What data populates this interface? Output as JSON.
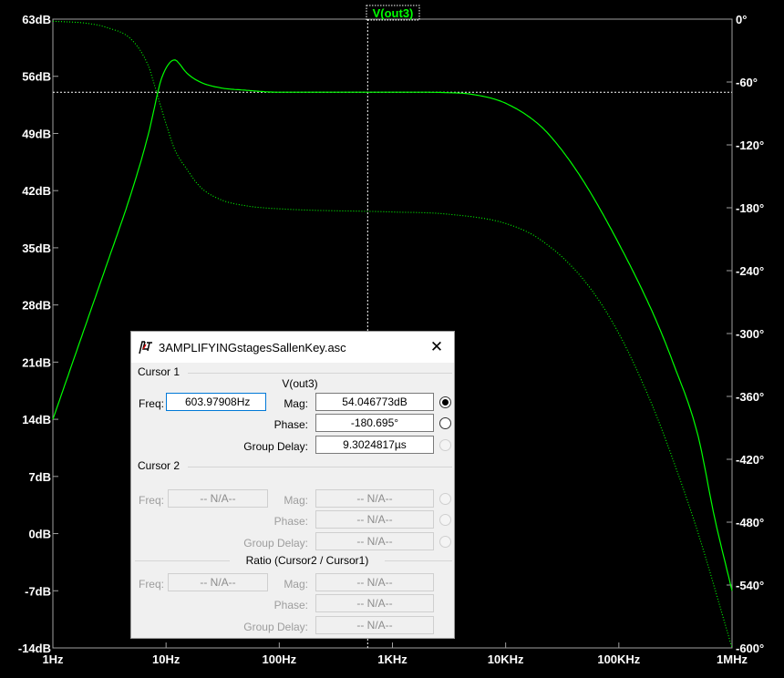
{
  "chart_data": {
    "type": "line",
    "title": "V(out3)",
    "xscale": "log",
    "xlim": [
      1,
      1000000
    ],
    "x_ticks": [
      {
        "value": 1,
        "label": "1Hz"
      },
      {
        "value": 10,
        "label": "10Hz"
      },
      {
        "value": 100,
        "label": "100Hz"
      },
      {
        "value": 1000,
        "label": "1KHz"
      },
      {
        "value": 10000,
        "label": "10KHz"
      },
      {
        "value": 100000,
        "label": "100KHz"
      },
      {
        "value": 1000000,
        "label": "1MHz"
      }
    ],
    "ylim_left": [
      -14,
      63
    ],
    "left_ticks": [
      {
        "value": 63,
        "label": "63dB"
      },
      {
        "value": 56,
        "label": "56dB"
      },
      {
        "value": 49,
        "label": "49dB"
      },
      {
        "value": 42,
        "label": "42dB"
      },
      {
        "value": 35,
        "label": "35dB"
      },
      {
        "value": 28,
        "label": "28dB"
      },
      {
        "value": 21,
        "label": "21dB"
      },
      {
        "value": 14,
        "label": "14dB"
      },
      {
        "value": 7,
        "label": "7dB"
      },
      {
        "value": 0,
        "label": "0dB"
      },
      {
        "value": -7,
        "label": "-7dB"
      },
      {
        "value": -14,
        "label": "-14dB"
      }
    ],
    "ylim_right": [
      -600,
      0
    ],
    "right_ticks": [
      {
        "value": 0,
        "label": "0°"
      },
      {
        "value": -60,
        "label": "-60°"
      },
      {
        "value": -120,
        "label": "-120°"
      },
      {
        "value": -180,
        "label": "-180°"
      },
      {
        "value": -240,
        "label": "-240°"
      },
      {
        "value": -300,
        "label": "-300°"
      },
      {
        "value": -360,
        "label": "-360°"
      },
      {
        "value": -420,
        "label": "-420°"
      },
      {
        "value": -480,
        "label": "-480°"
      },
      {
        "value": -540,
        "label": "-540°"
      },
      {
        "value": -600,
        "label": "-600°"
      }
    ],
    "series": [
      {
        "name": "V(out3)",
        "kind": "magnitude",
        "axis": "left",
        "color": "#00ff00",
        "style": "solid",
        "x": [
          1,
          2,
          3,
          5,
          7,
          9,
          10,
          11,
          12,
          13,
          15,
          20,
          30,
          50,
          100,
          200,
          1000,
          3000,
          5000,
          10000,
          20000,
          30000,
          50000,
          100000,
          200000,
          300000,
          500000,
          700000,
          1000000
        ],
        "y": [
          14,
          26,
          33,
          42,
          49,
          55.5,
          57,
          57.8,
          58,
          57.6,
          56.5,
          55.3,
          54.6,
          54.3,
          54.05,
          54.05,
          54.05,
          54.0,
          53.8,
          52.7,
          50.0,
          47.3,
          42.9,
          35.5,
          27.0,
          21.0,
          12.0,
          2.0,
          -7.0
        ]
      },
      {
        "name": "V(out3)",
        "kind": "phase",
        "axis": "right",
        "color": "#00ff00",
        "style": "dotted",
        "x": [
          1,
          2,
          3,
          5,
          7,
          8,
          10,
          12,
          15,
          20,
          30,
          50,
          100,
          1000,
          3000,
          10000,
          20000,
          50000,
          100000,
          200000,
          300000,
          500000,
          1000000
        ],
        "y": [
          -2,
          -4,
          -8,
          -20,
          -45,
          -65,
          -100,
          -125,
          -142,
          -160,
          -172,
          -178,
          -181,
          -184,
          -186,
          -195,
          -210,
          -250,
          -300,
          -370,
          -420,
          -490,
          -600
        ]
      }
    ],
    "cursor": {
      "x": 603.97908,
      "y_db": 54.046773
    }
  },
  "dialog": {
    "title": "3AMPLIFYINGstagesSallenKey.asc",
    "close_glyph": "✕",
    "cursor1": {
      "label": "Cursor 1",
      "signal": "V(out3)",
      "freq_label": "Freq:",
      "freq_value": "603.97908Hz",
      "mag_label": "Mag:",
      "mag_value": "54.046773dB",
      "phase_label": "Phase:",
      "phase_value": "-180.695°",
      "gd_label": "Group Delay:",
      "gd_value": "9.3024817µs"
    },
    "cursor2": {
      "label": "Cursor 2",
      "freq_label": "Freq:",
      "freq_value": "-- N/A--",
      "mag_label": "Mag:",
      "mag_value": "-- N/A--",
      "phase_label": "Phase:",
      "phase_value": "-- N/A--",
      "gd_label": "Group Delay:",
      "gd_value": "-- N/A--"
    },
    "ratio": {
      "label": "Ratio (Cursor2 / Cursor1)",
      "freq_label": "Freq:",
      "freq_value": "-- N/A--",
      "mag_label": "Mag:",
      "mag_value": "-- N/A--",
      "phase_label": "Phase:",
      "phase_value": "-- N/A--",
      "gd_label": "Group Delay:",
      "gd_value": "-- N/A--"
    }
  }
}
